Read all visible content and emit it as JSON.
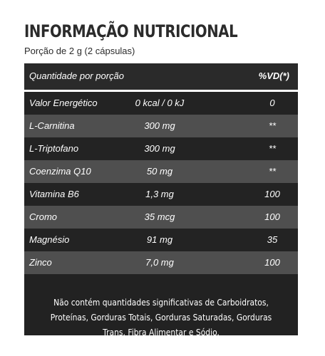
{
  "title": "INFORMAÇÃO NUTRICIONAL",
  "serving": "Porção de 2 g (2 cápsulas)",
  "table": {
    "header": {
      "label": "Quantidade por porção",
      "vd": "%VD(*)"
    },
    "rows": [
      {
        "name": "Valor Energético",
        "amount": "0 kcal / 0 kJ",
        "vd": "0"
      },
      {
        "name": "L-Carnitina",
        "amount": "300 mg",
        "vd": "**"
      },
      {
        "name": "L-Triptofano",
        "amount": "300 mg",
        "vd": "**"
      },
      {
        "name": "Coenzima Q10",
        "amount": "50 mg",
        "vd": "**"
      },
      {
        "name": "Vitamina B6",
        "amount": "1,3 mg",
        "vd": "100"
      },
      {
        "name": "Cromo",
        "amount": "35 mcg",
        "vd": "100"
      },
      {
        "name": "Magnésio",
        "amount": "91 mg",
        "vd": "35"
      },
      {
        "name": "Zinco",
        "amount": "7,0 mg",
        "vd": "100"
      }
    ],
    "footnote": [
      "Não contém quantidades significativas de Carboidratos,",
      "Proteínas, Gorduras Totais, Gorduras Saturadas, Gorduras",
      "Trans, Fibra Alimentar e Sódio."
    ]
  }
}
